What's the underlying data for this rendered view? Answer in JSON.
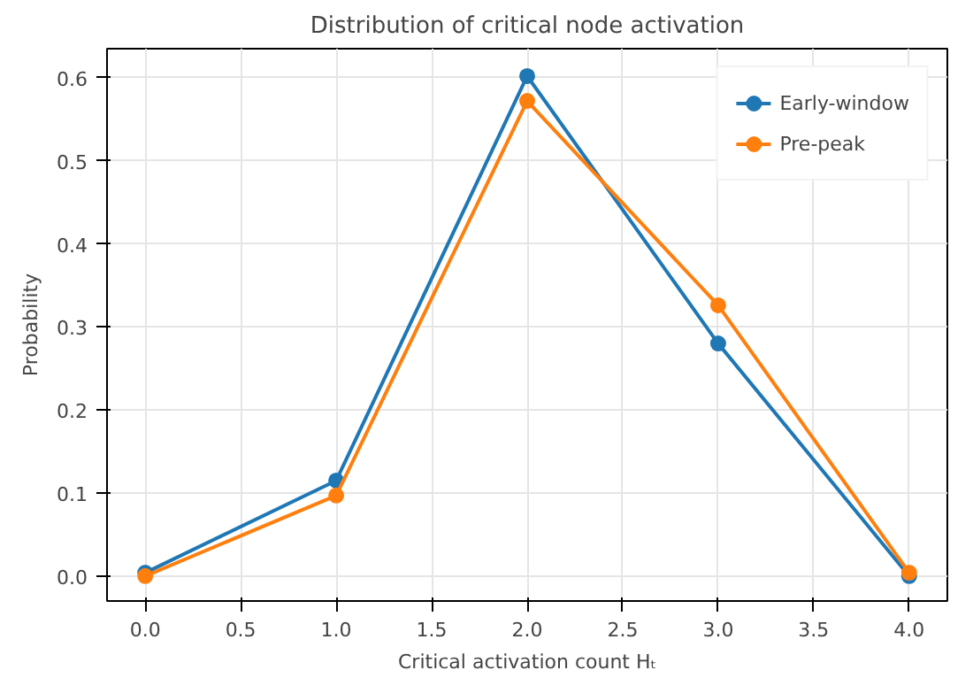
{
  "chart_data": {
    "type": "line",
    "title": "Distribution of critical node activation",
    "xlabel": "Critical activation count Hₜ",
    "ylabel": "Probability",
    "x": [
      0,
      1,
      2,
      3,
      4
    ],
    "series": [
      {
        "name": "Early-window",
        "color": "#1f77b4",
        "values": [
          0.004,
          0.115,
          0.602,
          0.28,
          0.0
        ]
      },
      {
        "name": "Pre-peak",
        "color": "#ff7f0e",
        "values": [
          0.0,
          0.097,
          0.572,
          0.326,
          0.004
        ]
      }
    ],
    "xlim": [
      -0.2,
      4.2
    ],
    "ylim": [
      -0.03,
      0.635
    ],
    "xticks": [
      {
        "value": 0,
        "label": "0.0"
      },
      {
        "value": 0.5,
        "label": "0.5"
      },
      {
        "value": 1,
        "label": "1.0"
      },
      {
        "value": 1.5,
        "label": "1.5"
      },
      {
        "value": 2,
        "label": "2.0"
      },
      {
        "value": 2.5,
        "label": "2.5"
      },
      {
        "value": 3,
        "label": "3.0"
      },
      {
        "value": 3.5,
        "label": "3.5"
      },
      {
        "value": 4,
        "label": "4.0"
      }
    ],
    "yticks": [
      {
        "value": 0,
        "label": "0.0"
      },
      {
        "value": 0.1,
        "label": "0.1"
      },
      {
        "value": 0.2,
        "label": "0.2"
      },
      {
        "value": 0.3,
        "label": "0.3"
      },
      {
        "value": 0.4,
        "label": "0.4"
      },
      {
        "value": 0.5,
        "label": "0.5"
      },
      {
        "value": 0.6,
        "label": "0.6"
      }
    ],
    "grid": true,
    "legend": "top right",
    "marker": "circle",
    "line_style": "solid"
  }
}
